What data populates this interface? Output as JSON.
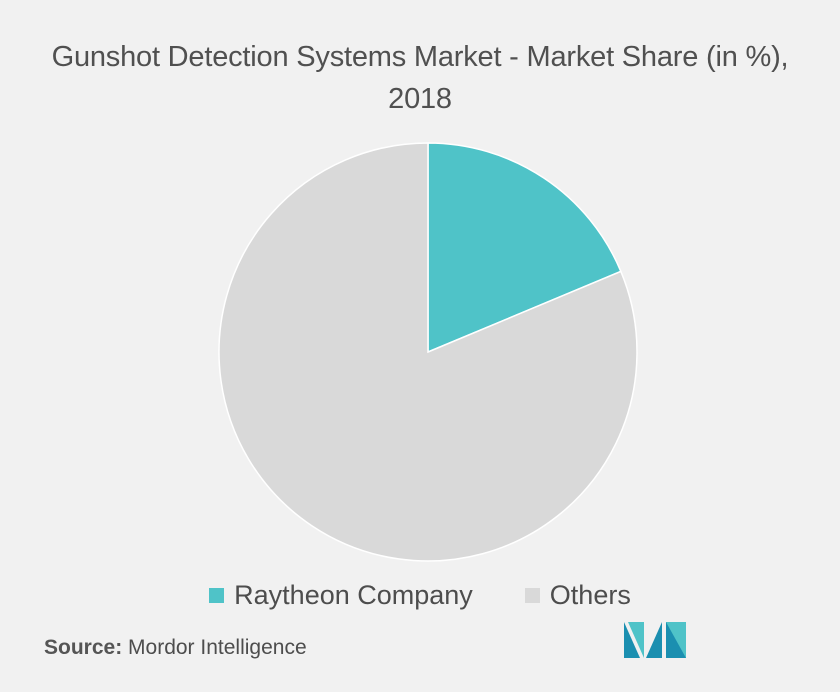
{
  "chart_data": {
    "type": "pie",
    "title": "Gunshot Detection Systems Market - Market Share (in %),",
    "title_line2": "2018",
    "slices": [
      {
        "name": "Raytheon Company",
        "value": 18.7,
        "color": "#4fc3c8"
      },
      {
        "name": "Others",
        "value": 81.3,
        "color": "#d9d9d9"
      }
    ],
    "start_angle_deg": 0,
    "legend_position": "bottom"
  },
  "source": {
    "label": "Source:",
    "text": "Mordor Intelligence"
  },
  "logo": {
    "icon": "mordor-intelligence-logo-icon",
    "colors": [
      "#1b8fb0",
      "#4fc3c8"
    ]
  }
}
